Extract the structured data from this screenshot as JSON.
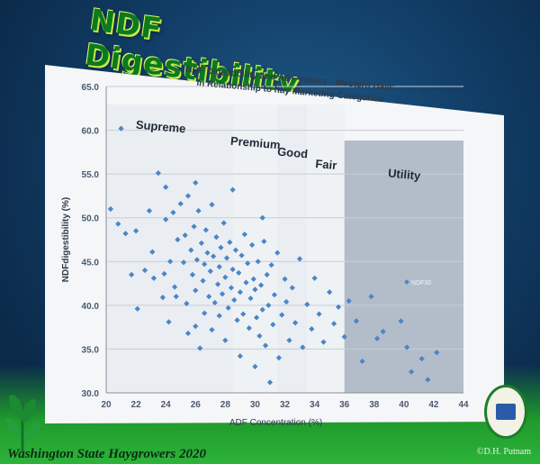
{
  "slide": {
    "title": "NDF Digestibility",
    "footer": "Washington State Haygrowers 2020",
    "credit": "©D.H. Putnam",
    "logo_icon": "uc-davis-seal-icon",
    "decoration_icon": "wheat-icon"
  },
  "colors": {
    "plot_bg": "#f4f6f8",
    "grid": "#c8cdd4",
    "point": "#4a86c8",
    "utility_shade": "#7d8ea3",
    "title": "#0a7a1e"
  },
  "chart_data": {
    "type": "scatter",
    "title": "NDF Digestibility and ADF Values - Western Hays",
    "subtitle": "in Relationship to hay Marketing Categories",
    "xlabel": "ADF Concentration (%)",
    "ylabel": "NDFdigestibility (%)",
    "xlim": [
      20,
      44
    ],
    "ylim": [
      30,
      65
    ],
    "xticks": [
      "20",
      "22",
      "24",
      "26",
      "28",
      "30",
      "32",
      "34",
      "36",
      "38",
      "40",
      "42",
      "44"
    ],
    "yticks": [
      "30.0",
      "35.0",
      "40.0",
      "45.0",
      "50.0",
      "55.0",
      "60.0",
      "65.0"
    ],
    "grid": true,
    "legend": {
      "position": "right",
      "entries": [
        "NDF30"
      ]
    },
    "categories": [
      {
        "label": "Supreme",
        "x_range": [
          20,
          28.5
        ]
      },
      {
        "label": "Premium",
        "x_range": [
          28.5,
          31.5
        ]
      },
      {
        "label": "Good",
        "x_range": [
          31.5,
          33.5
        ]
      },
      {
        "label": "Fair",
        "x_range": [
          33.5,
          36
        ]
      },
      {
        "label": "Utility",
        "x_range": [
          36,
          44
        ]
      }
    ],
    "series": [
      {
        "name": "NDF30",
        "points": [
          [
            20.3,
            51.0
          ],
          [
            20.8,
            49.3
          ],
          [
            21.0,
            60.2
          ],
          [
            21.3,
            48.2
          ],
          [
            21.7,
            43.5
          ],
          [
            22.0,
            48.5
          ],
          [
            22.1,
            39.6
          ],
          [
            22.6,
            44.0
          ],
          [
            22.9,
            50.8
          ],
          [
            23.1,
            46.1
          ],
          [
            23.2,
            43.1
          ],
          [
            23.5,
            55.1
          ],
          [
            23.8,
            40.9
          ],
          [
            23.9,
            43.6
          ],
          [
            24.0,
            49.8
          ],
          [
            24.2,
            38.1
          ],
          [
            24.3,
            45.0
          ],
          [
            24.5,
            50.6
          ],
          [
            24.6,
            42.1
          ],
          [
            24.7,
            41.0
          ],
          [
            24.8,
            47.5
          ],
          [
            25.0,
            51.6
          ],
          [
            25.2,
            44.9
          ],
          [
            25.3,
            48.0
          ],
          [
            25.4,
            40.2
          ],
          [
            25.5,
            52.5
          ],
          [
            25.5,
            36.8
          ],
          [
            25.7,
            46.3
          ],
          [
            25.8,
            43.5
          ],
          [
            25.9,
            49.0
          ],
          [
            26.0,
            41.7
          ],
          [
            26.0,
            37.6
          ],
          [
            26.1,
            45.2
          ],
          [
            26.2,
            50.8
          ],
          [
            26.3,
            35.1
          ],
          [
            26.4,
            47.1
          ],
          [
            26.5,
            42.8
          ],
          [
            26.6,
            44.7
          ],
          [
            26.6,
            39.1
          ],
          [
            26.7,
            48.6
          ],
          [
            26.8,
            46.0
          ],
          [
            26.9,
            41.0
          ],
          [
            27.0,
            43.9
          ],
          [
            27.1,
            51.5
          ],
          [
            27.1,
            37.2
          ],
          [
            27.2,
            45.6
          ],
          [
            27.3,
            40.3
          ],
          [
            27.4,
            47.8
          ],
          [
            27.5,
            42.4
          ],
          [
            27.6,
            44.4
          ],
          [
            27.6,
            38.8
          ],
          [
            27.7,
            46.6
          ],
          [
            27.8,
            41.3
          ],
          [
            27.9,
            49.4
          ],
          [
            28.0,
            43.2
          ],
          [
            28.0,
            36.0
          ],
          [
            28.1,
            45.4
          ],
          [
            28.2,
            39.7
          ],
          [
            28.3,
            47.2
          ],
          [
            28.4,
            42.0
          ],
          [
            28.5,
            53.2
          ],
          [
            28.5,
            44.1
          ],
          [
            28.6,
            40.6
          ],
          [
            28.7,
            46.3
          ],
          [
            28.8,
            38.3
          ],
          [
            28.9,
            43.7
          ],
          [
            29.0,
            41.5
          ],
          [
            29.0,
            34.2
          ],
          [
            29.1,
            45.7
          ],
          [
            29.2,
            39.0
          ],
          [
            29.3,
            48.1
          ],
          [
            29.4,
            42.6
          ],
          [
            29.5,
            44.8
          ],
          [
            29.6,
            37.4
          ],
          [
            29.7,
            40.8
          ],
          [
            29.8,
            46.9
          ],
          [
            29.9,
            43.0
          ],
          [
            30.0,
            33.0
          ],
          [
            30.0,
            41.8
          ],
          [
            30.1,
            38.6
          ],
          [
            30.2,
            45.0
          ],
          [
            30.3,
            36.5
          ],
          [
            30.4,
            42.3
          ],
          [
            30.5,
            39.5
          ],
          [
            30.6,
            47.3
          ],
          [
            30.7,
            35.4
          ],
          [
            30.8,
            43.5
          ],
          [
            30.9,
            40.0
          ],
          [
            31.0,
            31.2
          ],
          [
            31.1,
            44.6
          ],
          [
            31.2,
            37.8
          ],
          [
            31.3,
            41.2
          ],
          [
            31.5,
            46.0
          ],
          [
            31.6,
            34.0
          ],
          [
            31.8,
            38.9
          ],
          [
            32.0,
            43.0
          ],
          [
            32.1,
            40.4
          ],
          [
            32.3,
            36.0
          ],
          [
            32.5,
            42.0
          ],
          [
            32.7,
            38.0
          ],
          [
            33.0,
            45.3
          ],
          [
            33.2,
            35.2
          ],
          [
            33.5,
            40.1
          ],
          [
            33.8,
            37.3
          ],
          [
            34.0,
            43.1
          ],
          [
            34.3,
            39.0
          ],
          [
            34.6,
            35.8
          ],
          [
            35.0,
            41.5
          ],
          [
            35.3,
            37.9
          ],
          [
            35.6,
            39.8
          ],
          [
            36.0,
            36.4
          ],
          [
            36.3,
            40.5
          ],
          [
            36.8,
            38.2
          ],
          [
            37.2,
            33.6
          ],
          [
            37.8,
            41.0
          ],
          [
            38.6,
            37.0
          ],
          [
            39.8,
            38.2
          ],
          [
            40.2,
            35.2
          ],
          [
            41.2,
            33.9
          ],
          [
            41.6,
            31.5
          ],
          [
            42.2,
            34.6
          ],
          [
            40.5,
            32.4
          ],
          [
            38.2,
            36.2
          ],
          [
            26.0,
            54.0
          ],
          [
            24.0,
            53.5
          ],
          [
            30.5,
            50.0
          ]
        ]
      }
    ]
  }
}
